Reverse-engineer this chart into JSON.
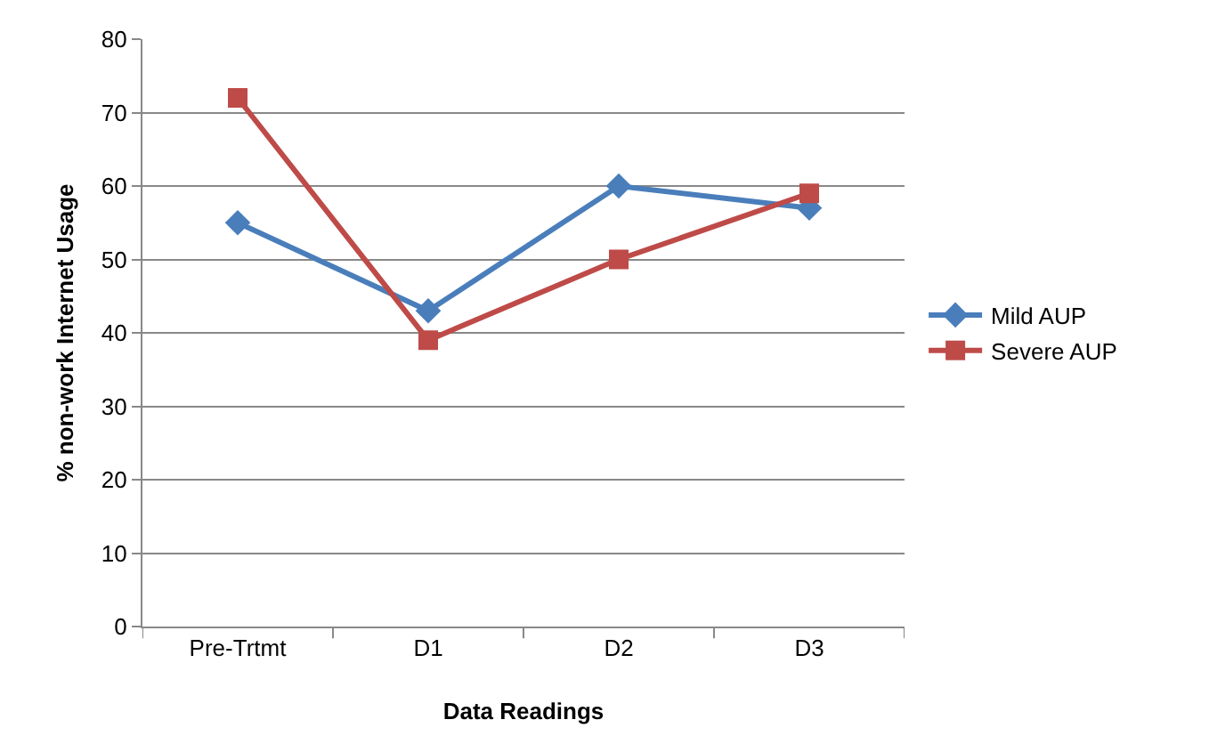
{
  "chart_data": {
    "type": "line",
    "xlabel": "Data Readings",
    "ylabel": "% non-work Internet Usage",
    "categories": [
      "Pre-Trtmt",
      "D1",
      "D2",
      "D3"
    ],
    "series": [
      {
        "name": "Mild AUP",
        "color": "#4a7ebb",
        "marker": "diamond",
        "values": [
          55,
          43,
          60,
          57
        ]
      },
      {
        "name": "Severe AUP",
        "color": "#be4b48",
        "marker": "square",
        "values": [
          72,
          39,
          50,
          59
        ]
      }
    ],
    "ylim": [
      0,
      80
    ],
    "yticks": [
      0,
      10,
      20,
      30,
      40,
      50,
      60,
      70,
      80
    ],
    "grid": "y",
    "legend": "right"
  }
}
